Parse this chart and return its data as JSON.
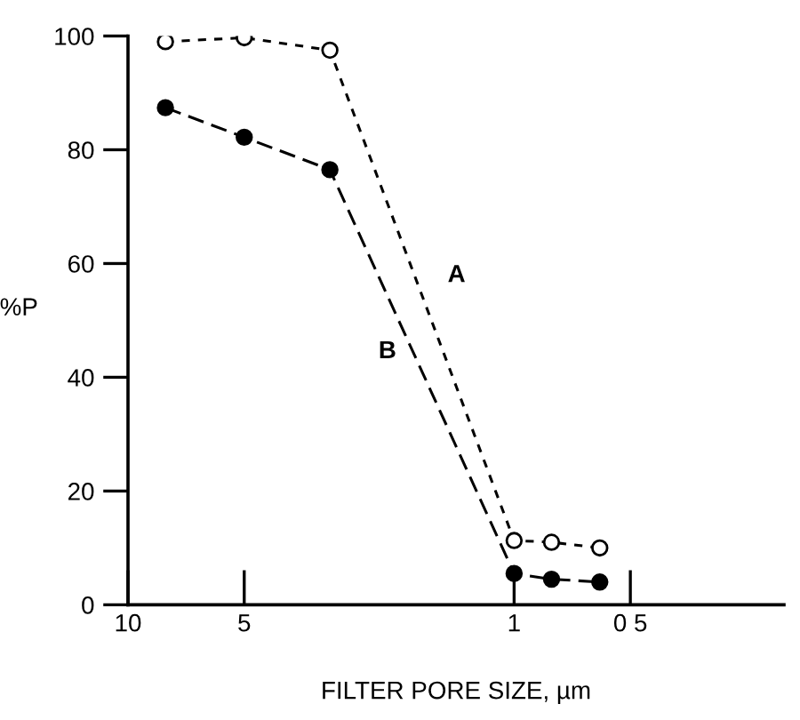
{
  "chart_data": {
    "type": "line",
    "xlabel": "FILTER PORE SIZE, µm",
    "ylabel": "%P",
    "log": "x",
    "xlim": [
      10,
      0.2
    ],
    "xticks": [
      10,
      5,
      1,
      {
        "value": 0.5,
        "label": "0 5"
      }
    ],
    "ylim": [
      0,
      100
    ],
    "yticks": [
      0,
      20,
      40,
      60,
      80,
      100
    ],
    "grid": false,
    "legend": false,
    "line_style": "dashed",
    "series": [
      {
        "name": "A",
        "color": "#000000",
        "marker": "circle",
        "x": [
          8,
          5,
          3,
          1,
          0.8,
          0.6
        ],
        "values": [
          99,
          99.7,
          97.5,
          11.3,
          11,
          10
        ]
      },
      {
        "name": "B",
        "color": "#000000",
        "marker": "circle",
        "x": [
          8,
          5,
          3,
          1,
          0.8,
          0.6
        ],
        "values": [
          87.4,
          82.2,
          76.5,
          5.5,
          4.5,
          4
        ]
      }
    ]
  }
}
